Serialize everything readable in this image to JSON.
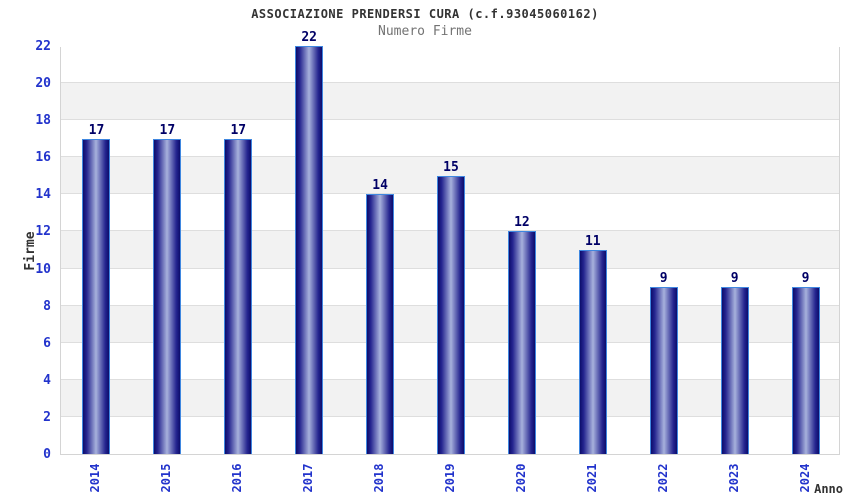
{
  "chart_data": {
    "type": "bar",
    "title": "ASSOCIAZIONE PRENDERSI CURA (c.f.93045060162)",
    "subtitle": "Numero Firme",
    "categories": [
      "2014",
      "2015",
      "2016",
      "2017",
      "2018",
      "2019",
      "2020",
      "2021",
      "2022",
      "2023",
      "2024"
    ],
    "values": [
      17,
      17,
      17,
      22,
      14,
      15,
      12,
      11,
      9,
      9,
      9
    ],
    "xlabel": "Anno",
    "ylabel": "Firme",
    "ylim": [
      0,
      22
    ],
    "yticks": [
      0,
      2,
      4,
      6,
      8,
      10,
      12,
      14,
      16,
      18,
      20,
      22
    ],
    "grid": true,
    "band_step": 2,
    "legend_position": "none",
    "colors": {
      "background": "#ffffff",
      "band_white": "#ffffff",
      "band_gray": "#f2f2f2",
      "gridline": "#dedede",
      "plot_border": "#d4d4d4",
      "bar_dark": "#0d0d6b",
      "bar_mid": "#24248f",
      "bar_light": "#a7b1dc",
      "bar_border": "#3f87e0",
      "tick_label": "#2233cc",
      "category_label": "#2233cc",
      "value_label": "#000066",
      "title_color": "#333333",
      "subtitle_color": "#737373",
      "axis_title_color": "#333333"
    }
  }
}
